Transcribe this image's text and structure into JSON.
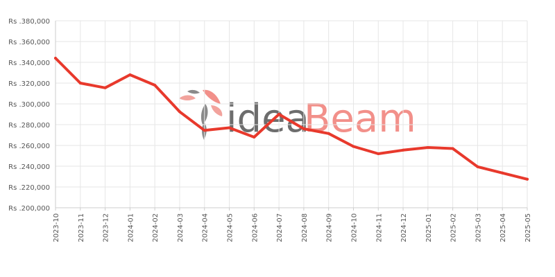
{
  "watermark": {
    "part1": "idea",
    "part2": "Beam",
    "color1": "#6d6d6d",
    "color2": "#f2908a"
  },
  "colors": {
    "line": "#e8392c",
    "grid": "#e6e6e6",
    "axis": "#cccccc"
  },
  "chart_data": {
    "type": "line",
    "title": "",
    "xlabel": "",
    "ylabel": "",
    "categories": [
      "2023-10",
      "2023-11",
      "2023-12",
      "2024-01",
      "2024-02",
      "2024-03",
      "2024-04",
      "2024-05",
      "2024-06",
      "2024-07",
      "2024-08",
      "2024-09",
      "2024-10",
      "2024-11",
      "2024-12",
      "2025-01",
      "2025-02",
      "2025-03",
      "2025-04",
      "2025-05"
    ],
    "y_ticks": [
      "Rs .200,000",
      "Rs .220,000",
      "Rs .240,000",
      "Rs .260,000",
      "Rs .280,000",
      "Rs .300,000",
      "Rs .320,000",
      "Rs .340,000",
      "Rs .360,000",
      "Rs .380,000"
    ],
    "ylim": [
      200000,
      380000
    ],
    "grid": true,
    "series": [
      {
        "values": [
          344000,
          320000,
          315500,
          328000,
          318000,
          292500,
          274500,
          277000,
          268000,
          290000,
          276000,
          271500,
          259000,
          252000,
          255500,
          258000,
          257000,
          239500,
          233500,
          227500
        ]
      }
    ]
  }
}
